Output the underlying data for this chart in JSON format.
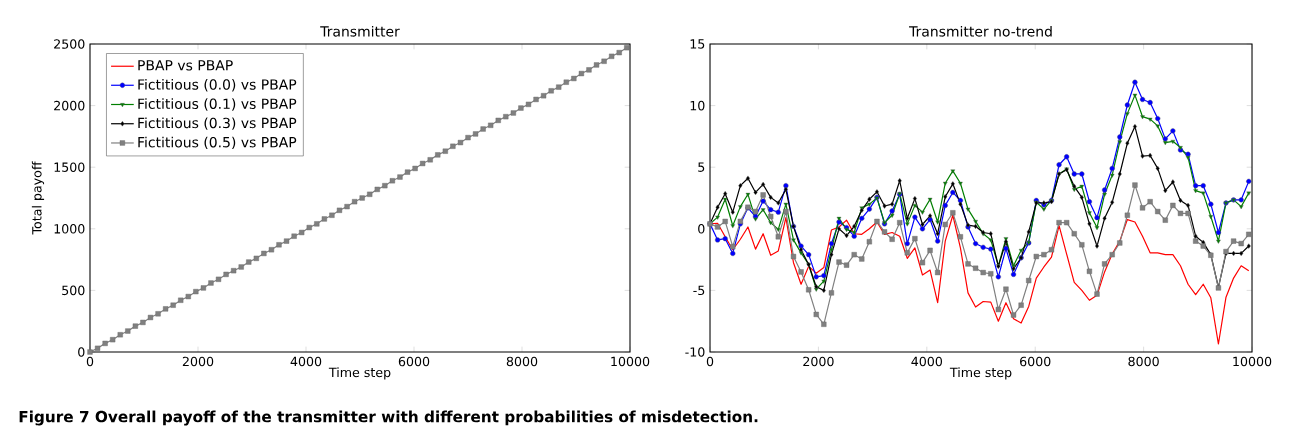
{
  "chart_data": [
    {
      "type": "line",
      "title": "Transmitter",
      "xlabel": "Time step",
      "ylabel": "Total payoff",
      "xlim": [
        0,
        10000
      ],
      "xticks": [
        0,
        2000,
        4000,
        6000,
        8000,
        10000
      ],
      "ylim": [
        0,
        2500
      ],
      "yticks": [
        0,
        500,
        1000,
        1500,
        2000,
        2500
      ],
      "legend": "top left",
      "grid": false,
      "annotations": [
        "Figure 7 Overall payoff of the transmitter with different probabilities of misdetection."
      ],
      "x": [
        0,
        140,
        280,
        420,
        560,
        700,
        840,
        980,
        1120,
        1260,
        1400,
        1540,
        1680,
        1820,
        1960,
        2100,
        2240,
        2380,
        2520,
        2660,
        2800,
        2940,
        3080,
        3220,
        3360,
        3500,
        3640,
        3780,
        3920,
        4060,
        4200,
        4340,
        4480,
        4620,
        4760,
        4900,
        5040,
        5180,
        5320,
        5460,
        5600,
        5740,
        5880,
        6020,
        6160,
        6300,
        6440,
        6580,
        6720,
        6860,
        7000,
        7140,
        7280,
        7420,
        7560,
        7700,
        7840,
        7980,
        8120,
        8260,
        8400,
        8540,
        8680,
        8820,
        8960,
        9100,
        9240,
        9380,
        9520,
        9660,
        9800,
        9940
      ],
      "series": [
        {
          "name": "PBAP vs PBAP",
          "color": "#ff0000",
          "marker": "none",
          "values": [
            null,
            null,
            null,
            null,
            null,
            null,
            null,
            null,
            null,
            null,
            null,
            null,
            null,
            null,
            null,
            null,
            null,
            null,
            null,
            null,
            null,
            null,
            null,
            null,
            null,
            null,
            null,
            null,
            null,
            null,
            null,
            null,
            null,
            null,
            null,
            null,
            null,
            null,
            null,
            null,
            null,
            null,
            null,
            null,
            null,
            null,
            null,
            null,
            null,
            null,
            null,
            null,
            null,
            null,
            null,
            null,
            null,
            null,
            null,
            null,
            null,
            null,
            null,
            null,
            null,
            null,
            null,
            null,
            null,
            null,
            null,
            null
          ]
        },
        {
          "name": "Fictitious (0.0) vs PBAP",
          "color": "#0000ff",
          "marker": "circle",
          "values": [
            null,
            null,
            null,
            null,
            null,
            null,
            null,
            null,
            null,
            null,
            null,
            null,
            null,
            null,
            null,
            null,
            null,
            null,
            null,
            null,
            null,
            null,
            null,
            null,
            null,
            null,
            null,
            null,
            null,
            null,
            null,
            null,
            null,
            null,
            null,
            null,
            null,
            null,
            null,
            null,
            null,
            null,
            null,
            null,
            null,
            null,
            null,
            null,
            null,
            null,
            null,
            null,
            null,
            null,
            null,
            null,
            null,
            null,
            null,
            null,
            null,
            null,
            null,
            null,
            null,
            null,
            null,
            null,
            null,
            null,
            null,
            null
          ]
        },
        {
          "name": "Fictitious (0.1) vs PBAP",
          "color": "#007f00",
          "marker": "triangle",
          "values": [
            null,
            null,
            null,
            null,
            null,
            null,
            null,
            null,
            null,
            null,
            null,
            null,
            null,
            null,
            null,
            null,
            null,
            null,
            null,
            null,
            null,
            null,
            null,
            null,
            null,
            null,
            null,
            null,
            null,
            null,
            null,
            null,
            null,
            null,
            null,
            null,
            null,
            null,
            null,
            null,
            null,
            null,
            null,
            null,
            null,
            null,
            null,
            null,
            null,
            null,
            null,
            null,
            null,
            null,
            null,
            null,
            null,
            null,
            null,
            null,
            null,
            null,
            null,
            null,
            null,
            null,
            null,
            null,
            null,
            null,
            null,
            null
          ]
        },
        {
          "name": "Fictitious (0.3) vs PBAP",
          "color": "#000000",
          "marker": "diamond",
          "values": [
            null,
            null,
            null,
            null,
            null,
            null,
            null,
            null,
            null,
            null,
            null,
            null,
            null,
            null,
            null,
            null,
            null,
            null,
            null,
            null,
            null,
            null,
            null,
            null,
            null,
            null,
            null,
            null,
            null,
            null,
            null,
            null,
            null,
            null,
            null,
            null,
            null,
            null,
            null,
            null,
            null,
            null,
            null,
            null,
            null,
            null,
            null,
            null,
            null,
            null,
            null,
            null,
            null,
            null,
            null,
            null,
            null,
            null,
            null,
            null,
            null,
            null,
            null,
            null,
            null,
            null,
            null,
            null,
            null,
            null,
            null,
            null
          ]
        },
        {
          "name": "Fictitious (0.5) vs PBAP",
          "color": "#808080",
          "marker": "square",
          "values": [
            0,
            30,
            70,
            100,
            140,
            170,
            210,
            240,
            280,
            310,
            350,
            380,
            420,
            450,
            490,
            520,
            560,
            590,
            630,
            660,
            690,
            730,
            760,
            800,
            830,
            870,
            900,
            940,
            970,
            1010,
            1040,
            1080,
            1110,
            1150,
            1180,
            1220,
            1250,
            1280,
            1320,
            1350,
            1390,
            1420,
            1460,
            1490,
            1530,
            1560,
            1600,
            1630,
            1670,
            1700,
            1740,
            1770,
            1810,
            1840,
            1880,
            1910,
            1940,
            1980,
            2010,
            2050,
            2080,
            2120,
            2150,
            2190,
            2220,
            2260,
            2290,
            2330,
            2360,
            2400,
            2430,
            2470
          ]
        }
      ]
    },
    {
      "type": "line",
      "title": "Transmitter no-trend",
      "xlabel": "Time step",
      "xlim": [
        0,
        10000
      ],
      "xticks": [
        0,
        2000,
        4000,
        6000,
        8000,
        10000
      ],
      "ylim": [
        -10,
        15
      ],
      "yticks": [
        -10,
        -5,
        0,
        5,
        10,
        15
      ],
      "grid": false,
      "x": [
        0,
        140,
        280,
        420,
        560,
        700,
        840,
        980,
        1120,
        1260,
        1400,
        1540,
        1680,
        1820,
        1960,
        2100,
        2240,
        2380,
        2520,
        2660,
        2800,
        2940,
        3080,
        3220,
        3360,
        3500,
        3640,
        3780,
        3920,
        4060,
        4200,
        4340,
        4480,
        4620,
        4760,
        4900,
        5040,
        5180,
        5320,
        5460,
        5600,
        5740,
        5880,
        6020,
        6160,
        6300,
        6440,
        6580,
        6720,
        6860,
        7000,
        7140,
        7280,
        7420,
        7560,
        7700,
        7840,
        7980,
        8120,
        8260,
        8400,
        8540,
        8680,
        8820,
        8960,
        9100,
        9240,
        9380,
        9520,
        9660,
        9800,
        9940
      ],
      "series": [
        {
          "color": "#ff0000",
          "marker": "none",
          "values": [
            0.4,
            0.45,
            -0.65,
            -1.7,
            -0.85,
            0.15,
            -1.65,
            -0.4,
            -2.15,
            -1.8,
            0.9,
            -2.75,
            -4.5,
            -3.05,
            -3.6,
            -3.15,
            -0.1,
            0.15,
            0.7,
            -0.4,
            -0.45,
            0,
            0.55,
            -0.45,
            -0.3,
            -0.6,
            -2.4,
            -1.55,
            -3.75,
            -3.35,
            -6.0,
            -1.0,
            1.1,
            -1.55,
            -5.2,
            -6.35,
            -5.9,
            -5.95,
            -7.5,
            -6.0,
            -7.3,
            -7.65,
            -6.3,
            -4.0,
            -3.1,
            -2.3,
            0.25,
            -2.05,
            -4.35,
            -5.0,
            -5.8,
            -5.4,
            -3.5,
            -2.05,
            -1.0,
            0.75,
            0.55,
            -0.6,
            -1.95,
            -1.95,
            -2.1,
            -2.1,
            -3.0,
            -4.5,
            -5.35,
            -4.5,
            -5.6,
            -9.35,
            -5.55,
            -4.0,
            -3.0,
            -3.4
          ]
        },
        {
          "color": "#0000ff",
          "marker": "circle",
          "values": [
            0.4,
            -0.9,
            -0.8,
            -2.0,
            0.4,
            1.7,
            1.0,
            2.25,
            1.55,
            1.35,
            3.5,
            0.2,
            -1.4,
            -2.1,
            -3.9,
            -3.8,
            -1.2,
            0.55,
            0.1,
            -0.6,
            0.85,
            1.6,
            2.55,
            0.4,
            1.45,
            2.8,
            -1.2,
            0.95,
            0,
            0.75,
            -1.0,
            1.9,
            2.95,
            2.3,
            0.15,
            -1.2,
            -1.5,
            -1.65,
            -3.9,
            -1.6,
            -3.7,
            -2.35,
            -1.15,
            2.3,
            1.95,
            2.3,
            5.2,
            5.85,
            4.45,
            4.45,
            2.2,
            0.9,
            3.15,
            4.9,
            7.45,
            10.05,
            11.9,
            10.5,
            10.25,
            8.95,
            7.3,
            7.95,
            6.4,
            6.05,
            3.5,
            3.5,
            2.0,
            -0.3,
            2.1,
            2.35,
            2.35,
            3.85
          ]
        },
        {
          "color": "#007f00",
          "marker": "triangle",
          "values": [
            0.4,
            0.95,
            2.4,
            0.25,
            1.8,
            2.8,
            0.8,
            1.55,
            0.5,
            -0.05,
            2.0,
            -0.9,
            -1.95,
            -2.9,
            -4.9,
            -4.25,
            -1.7,
            0.85,
            -0.05,
            -0.3,
            1.7,
            2.0,
            2.5,
            0.5,
            1.1,
            2.85,
            0.4,
            1.9,
            1.35,
            2.4,
            0.55,
            3.7,
            4.7,
            3.7,
            1.6,
            0.6,
            -0.4,
            -0.9,
            -3.0,
            -0.8,
            -3.0,
            -1.75,
            -1.1,
            2.15,
            1.6,
            2.3,
            4.45,
            4.85,
            3.2,
            3.45,
            1.3,
            0.1,
            2.8,
            4.35,
            7.05,
            9.35,
            10.85,
            9.1,
            8.9,
            8.35,
            7.0,
            7.1,
            6.6,
            5.8,
            3.1,
            2.9,
            1.0,
            -1.0,
            2.1,
            2.35,
            1.8,
            2.9
          ]
        },
        {
          "color": "#000000",
          "marker": "diamond",
          "values": [
            0.4,
            1.75,
            2.85,
            1.35,
            3.5,
            4.1,
            2.95,
            3.6,
            2.55,
            2.1,
            3.2,
            0.2,
            -1.7,
            -2.9,
            -4.7,
            -5.0,
            -2.1,
            0,
            -0.55,
            0.2,
            1.5,
            2.4,
            3.0,
            1.85,
            2.0,
            3.9,
            0.85,
            2.45,
            0.35,
            1.05,
            -0.4,
            2.6,
            3.65,
            2.0,
            0.3,
            0.2,
            -0.3,
            -0.4,
            -3.05,
            -1.05,
            -3.25,
            -2.35,
            -0.25,
            2.1,
            2.1,
            2.2,
            4.45,
            4.8,
            3.45,
            2.55,
            0.4,
            -1.4,
            0.85,
            2.15,
            4.45,
            6.95,
            8.3,
            5.9,
            5.95,
            4.9,
            3.1,
            3.8,
            2.3,
            1.9,
            -0.6,
            -1.1,
            -2.1,
            -4.75,
            -2.0,
            -2.0,
            -2.0,
            -1.4
          ]
        },
        {
          "color": "#808080",
          "marker": "square",
          "values": [
            0.4,
            0.15,
            0.6,
            -1.45,
            0.6,
            1.75,
            1.4,
            2.75,
            1.0,
            -0.65,
            1.4,
            -2.25,
            -3.5,
            -4.95,
            -6.95,
            -7.75,
            -5.2,
            -2.7,
            -2.95,
            -2.1,
            -2.45,
            -1.05,
            0.6,
            -0.25,
            -0.85,
            0.5,
            -1.95,
            -0.8,
            -2.75,
            -1.75,
            -3.55,
            0.35,
            1.3,
            -0.65,
            -2.85,
            -3.2,
            -3.55,
            -3.65,
            -6.55,
            -4.9,
            -7.0,
            -6.2,
            -4.2,
            -2.25,
            -2.1,
            -1.7,
            0.5,
            0.5,
            -0.4,
            -1.3,
            -3.45,
            -5.3,
            -2.85,
            -2.1,
            -1.15,
            1.1,
            3.55,
            1.7,
            2.2,
            1.4,
            0.7,
            1.9,
            1.25,
            1.25,
            -1.0,
            -1.4,
            -2.15,
            -4.8,
            -1.85,
            -1.0,
            -1.2,
            -0.45
          ]
        }
      ]
    }
  ]
}
